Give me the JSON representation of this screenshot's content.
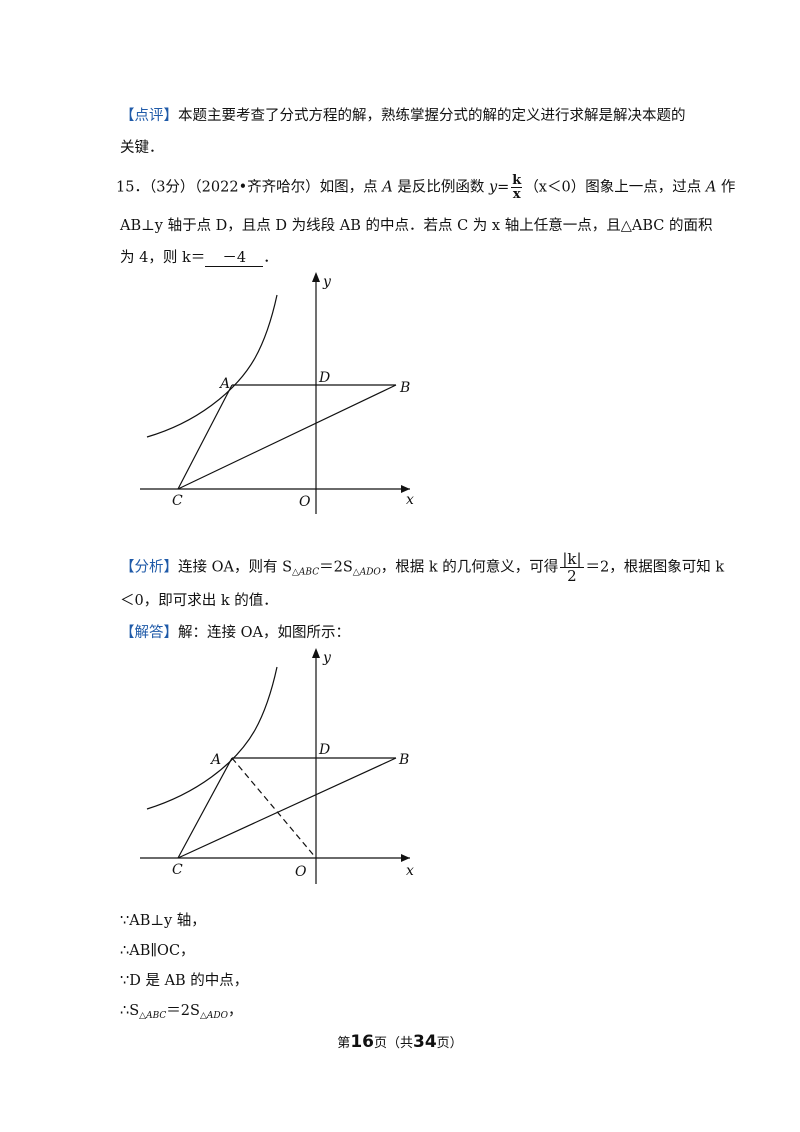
{
  "review": {
    "tag": "【点评】",
    "text1": "本题主要考查了分式方程的解，熟练掌握分式的解的定义进行求解是解决本题的",
    "text2": "关键．"
  },
  "question": {
    "num": "15．（3分）（2022•齐齐哈尔）如图，点",
    "p1": "是反比例函数",
    "y_eq": "y=",
    "frac_num": "k",
    "frac_den": "x",
    "cond": "（x＜0）图象上一点，过点",
    "p2": "作",
    "line2": "AB⊥y 轴于点 D，且点 D 为线段 AB 的中点．若点 C 为 x 轴上任意一点，且△ABC 的面积",
    "line3_pre": "为 4，则 k＝",
    "answer": "－4",
    "line3_post": "．",
    "A": "A"
  },
  "figure1": {
    "labels": {
      "y": "y",
      "x": "x",
      "O": "O",
      "A": "A",
      "B": "B",
      "C": "C",
      "D": "D"
    }
  },
  "analysis": {
    "tag": "【分析】",
    "t1": "连接 OA，则有 S",
    "sub1": "△ABC",
    "t2": "＝2S",
    "sub2": "△ADO",
    "t3": "，根据 k 的几何意义，可得",
    "frac_num": "|k|",
    "frac_den": "2",
    "t4": "＝2，根据图象可知 k",
    "line2": "＜0，即可求出 k 的值．"
  },
  "solution": {
    "tag": "【解答】",
    "text": "解：连接 OA，如图所示："
  },
  "figure2": {
    "labels": {
      "y": "y",
      "x": "x",
      "O": "O",
      "A": "A",
      "B": "B",
      "C": "C",
      "D": "D"
    }
  },
  "steps": [
    "∵AB⊥y 轴，",
    "∴AB∥OC，",
    "∵D 是 AB 的中点，"
  ],
  "step4": {
    "pre": "∴S",
    "sub1": "△ABC",
    "mid": "＝2S",
    "sub2": "△ADO",
    "post": "，"
  },
  "footer": {
    "pre": "第",
    "page": "16",
    "mid": "页（共",
    "total": "34",
    "post": "页）"
  }
}
